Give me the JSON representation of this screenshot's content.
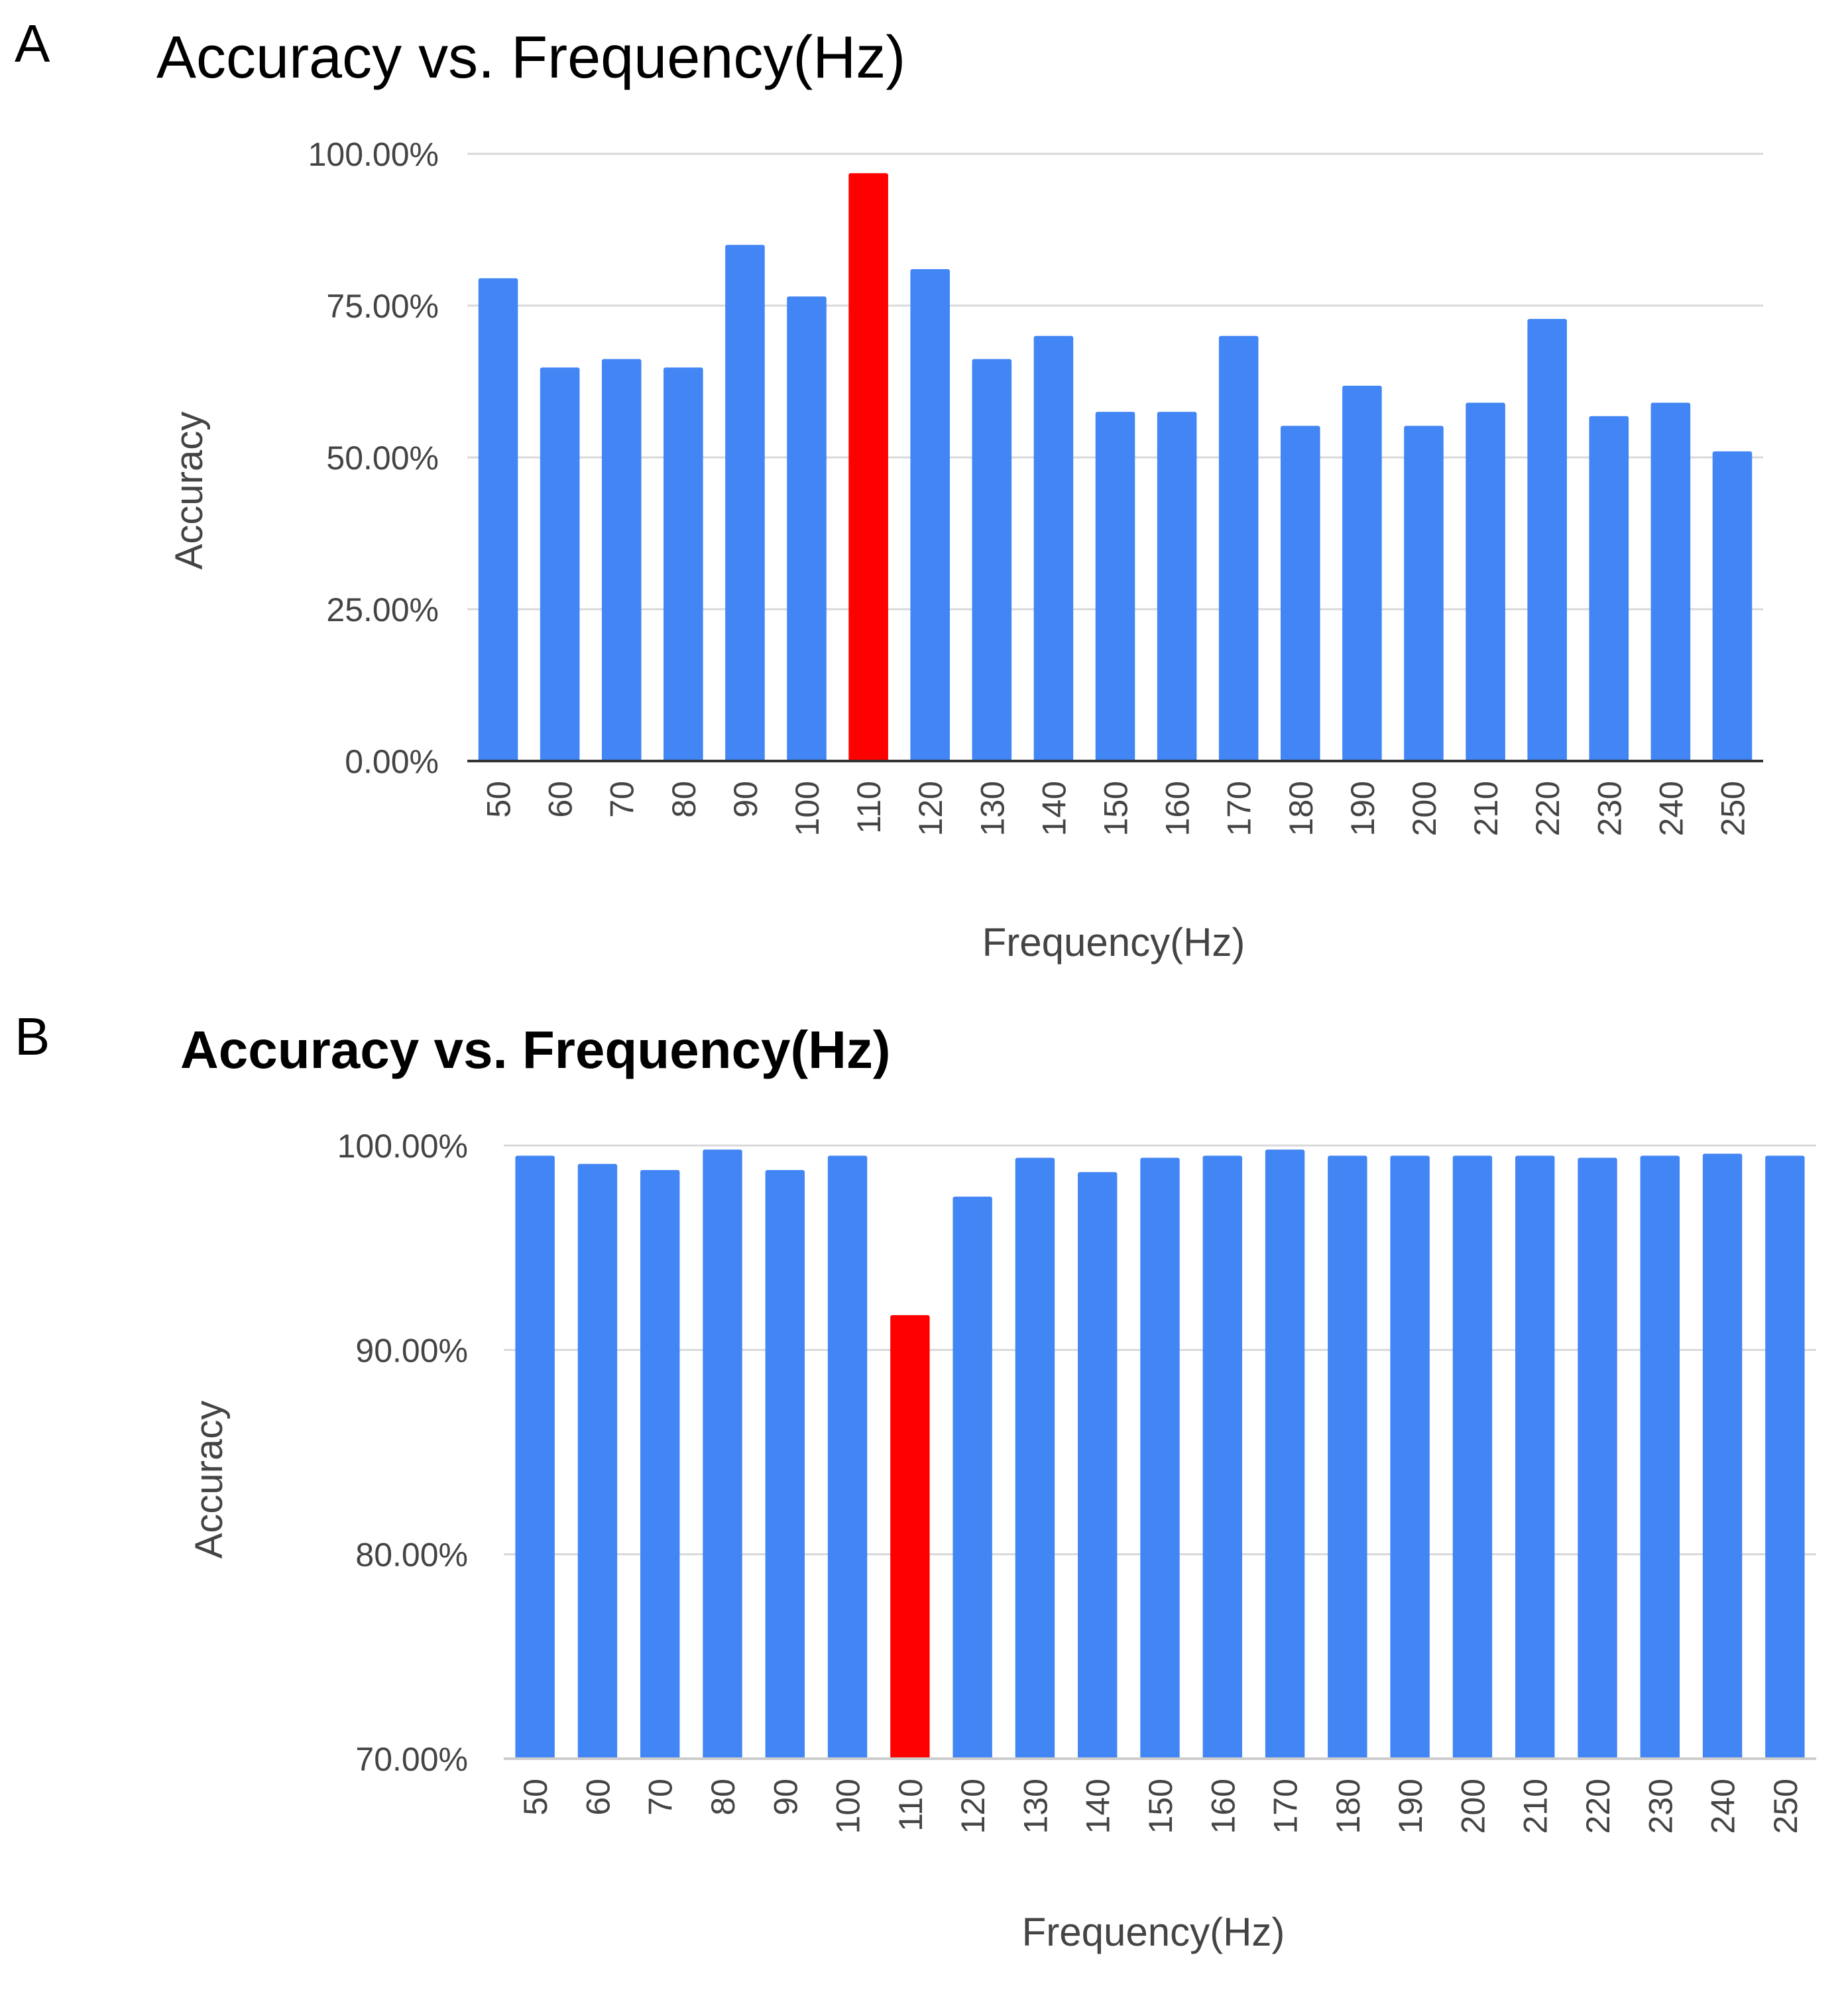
{
  "chart_data": [
    {
      "panel": "A",
      "type": "bar",
      "title": "Accuracy vs. Frequency(Hz)",
      "xlabel": "Frequency(Hz)",
      "ylabel": "Accuracy",
      "ylim": [
        0,
        100
      ],
      "yticks": [
        "0.00%",
        "25.00%",
        "50.00%",
        "75.00%",
        "100.00%"
      ],
      "ytick_values": [
        0,
        25,
        50,
        75,
        100
      ],
      "categories": [
        "50",
        "60",
        "70",
        "80",
        "90",
        "100",
        "110",
        "120",
        "130",
        "140",
        "150",
        "160",
        "170",
        "180",
        "190",
        "200",
        "210",
        "220",
        "230",
        "240",
        "250"
      ],
      "values": [
        79.5,
        64.8,
        66.2,
        64.8,
        85.0,
        76.5,
        96.8,
        81.0,
        66.2,
        70.0,
        57.5,
        57.5,
        70.0,
        55.2,
        61.8,
        55.2,
        59.0,
        72.8,
        56.8,
        59.0,
        51.0
      ],
      "highlight_index": 6,
      "bar_color": "#4285F4",
      "highlight_color": "#FF0000",
      "grid": true
    },
    {
      "panel": "B",
      "type": "bar",
      "title": "Accuracy vs. Frequency(Hz)",
      "xlabel": "Frequency(Hz)",
      "ylabel": "Accuracy",
      "ylim": [
        70,
        100
      ],
      "yticks": [
        "70.00%",
        "80.00%",
        "90.00%",
        "100.00%"
      ],
      "ytick_values": [
        70,
        80,
        90,
        100
      ],
      "categories": [
        "50",
        "60",
        "70",
        "80",
        "90",
        "100",
        "110",
        "120",
        "130",
        "140",
        "150",
        "160",
        "170",
        "180",
        "190",
        "200",
        "210",
        "220",
        "230",
        "240",
        "250"
      ],
      "values": [
        99.5,
        99.1,
        98.8,
        99.8,
        98.8,
        99.5,
        91.7,
        97.5,
        99.4,
        98.7,
        99.4,
        99.5,
        99.8,
        99.5,
        99.5,
        99.5,
        99.5,
        99.4,
        99.5,
        99.6,
        99.5
      ],
      "highlight_index": 6,
      "bar_color": "#4285F4",
      "highlight_color": "#FF0000",
      "grid": true
    }
  ],
  "panels": {
    "A": {
      "letter": "A"
    },
    "B": {
      "letter": "B"
    }
  }
}
